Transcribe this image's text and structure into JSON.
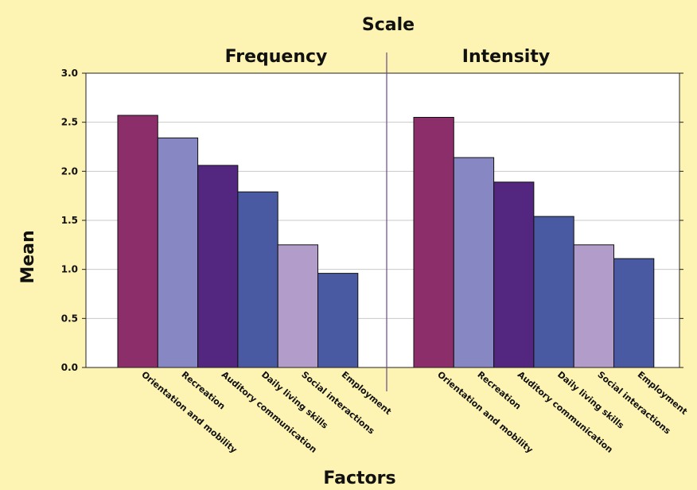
{
  "chart_data": {
    "type": "bar",
    "title": "Scale",
    "xlabel": "Factors",
    "ylabel": "Mean",
    "ylim": [
      0,
      3
    ],
    "yticks": [
      "0.0",
      "0.5",
      "1.0",
      "1.5",
      "2.0",
      "2.5",
      "3.0"
    ],
    "grid": true,
    "categories": [
      "Orientation and mobility",
      "Recreation",
      "Auditory communication",
      "Daily living skills",
      "Social interactions",
      "Employment"
    ],
    "colors": [
      "#8c2e6a",
      "#8787c3",
      "#53267f",
      "#4a5aa2",
      "#b29cc9",
      "#4a5aa2"
    ],
    "panels": [
      {
        "name": "Frequency",
        "values": [
          2.57,
          2.34,
          2.06,
          1.79,
          1.25,
          0.96
        ]
      },
      {
        "name": "Intensity",
        "values": [
          2.55,
          2.14,
          1.89,
          1.54,
          1.25,
          1.11
        ]
      }
    ]
  }
}
